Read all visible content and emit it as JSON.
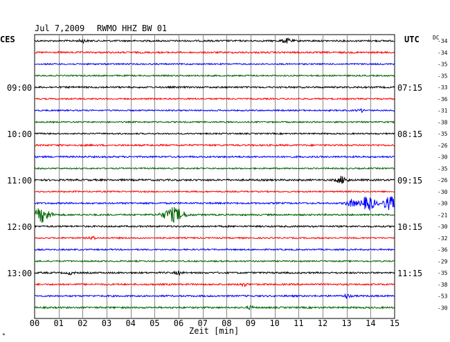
{
  "header": {
    "date": "Jul 7,2009",
    "station": "RWMO HHZ BW 01"
  },
  "left_axis_title": "CES",
  "right_axis_title": "UTC",
  "dc_label": "DC",
  "x_axis_title": "Zeit [min]",
  "corner_mark": "*",
  "colors": {
    "black": "#000000",
    "red": "#ff0000",
    "blue": "#0000ff",
    "green": "#006400",
    "grid": "#888888"
  },
  "chart_data": {
    "type": "line",
    "title": "Jul 7,2009   RWMO HHZ BW 01",
    "xlabel": "Zeit [min]",
    "x_ticks": [
      "00",
      "01",
      "02",
      "03",
      "04",
      "05",
      "06",
      "07",
      "08",
      "09",
      "10",
      "11",
      "12",
      "13",
      "14",
      "15"
    ],
    "xlim": [
      0,
      15
    ],
    "left_time_labels": [
      {
        "row": 4,
        "text": "09:00"
      },
      {
        "row": 8,
        "text": "10:00"
      },
      {
        "row": 12,
        "text": "11:00"
      },
      {
        "row": 16,
        "text": "12:00"
      },
      {
        "row": 20,
        "text": "13:00"
      }
    ],
    "right_time_labels": [
      {
        "row": 4,
        "text": "07:15"
      },
      {
        "row": 8,
        "text": "08:15"
      },
      {
        "row": 12,
        "text": "09:15"
      },
      {
        "row": 16,
        "text": "10:15"
      },
      {
        "row": 20,
        "text": "11:15"
      }
    ],
    "dc_offsets": [
      "-34",
      "-34",
      "-35",
      "-35",
      "-33",
      "-36",
      "-31",
      "-38",
      "-35",
      "-26",
      "-30",
      "-35",
      "-26",
      "-30",
      "-30",
      "-21",
      "-30",
      "-32",
      "-36",
      "-29",
      "-35",
      "-38",
      "-53",
      "-30"
    ],
    "series": [
      {
        "color": "black",
        "amplitude": 1.2,
        "events": [
          {
            "t": 2.0,
            "amp": 2,
            "w": 0.2
          },
          {
            "t": 10.5,
            "amp": 3,
            "w": 0.3
          }
        ]
      },
      {
        "color": "red",
        "amplitude": 1.2,
        "events": []
      },
      {
        "color": "blue",
        "amplitude": 1.0,
        "events": []
      },
      {
        "color": "green",
        "amplitude": 1.0,
        "events": []
      },
      {
        "color": "black",
        "amplitude": 1.2,
        "events": []
      },
      {
        "color": "red",
        "amplitude": 1.0,
        "events": []
      },
      {
        "color": "blue",
        "amplitude": 1.0,
        "events": [
          {
            "t": 13.6,
            "amp": 2,
            "w": 0.2
          }
        ]
      },
      {
        "color": "green",
        "amplitude": 1.0,
        "events": []
      },
      {
        "color": "black",
        "amplitude": 1.0,
        "events": []
      },
      {
        "color": "red",
        "amplitude": 1.2,
        "events": []
      },
      {
        "color": "blue",
        "amplitude": 1.2,
        "events": []
      },
      {
        "color": "green",
        "amplitude": 1.0,
        "events": []
      },
      {
        "color": "black",
        "amplitude": 1.3,
        "events": [
          {
            "t": 12.8,
            "amp": 5,
            "w": 0.3
          }
        ]
      },
      {
        "color": "red",
        "amplitude": 1.0,
        "events": []
      },
      {
        "color": "blue",
        "amplitude": 1.2,
        "events": [
          {
            "t": 13.2,
            "amp": 5,
            "w": 0.3
          },
          {
            "t": 13.9,
            "amp": 10,
            "w": 0.4
          },
          {
            "t": 14.8,
            "amp": 9,
            "w": 0.4
          }
        ]
      },
      {
        "color": "green",
        "amplitude": 1.2,
        "events": [
          {
            "t": 0.3,
            "amp": 10,
            "w": 0.5
          },
          {
            "t": 5.8,
            "amp": 10,
            "w": 0.6
          }
        ]
      },
      {
        "color": "black",
        "amplitude": 1.2,
        "events": []
      },
      {
        "color": "red",
        "amplitude": 1.0,
        "events": [
          {
            "t": 2.4,
            "amp": 2,
            "w": 0.2
          }
        ]
      },
      {
        "color": "blue",
        "amplitude": 1.0,
        "events": []
      },
      {
        "color": "green",
        "amplitude": 1.0,
        "events": []
      },
      {
        "color": "black",
        "amplitude": 1.2,
        "events": [
          {
            "t": 1.5,
            "amp": 2,
            "w": 0.2
          },
          {
            "t": 6.0,
            "amp": 2,
            "w": 0.2
          }
        ]
      },
      {
        "color": "red",
        "amplitude": 1.2,
        "events": [
          {
            "t": 8.7,
            "amp": 3,
            "w": 0.2
          }
        ]
      },
      {
        "color": "blue",
        "amplitude": 1.2,
        "events": [
          {
            "t": 13.0,
            "amp": 3,
            "w": 0.2
          }
        ]
      },
      {
        "color": "green",
        "amplitude": 1.2,
        "events": [
          {
            "t": 9.0,
            "amp": 2,
            "w": 0.2
          }
        ]
      }
    ]
  }
}
